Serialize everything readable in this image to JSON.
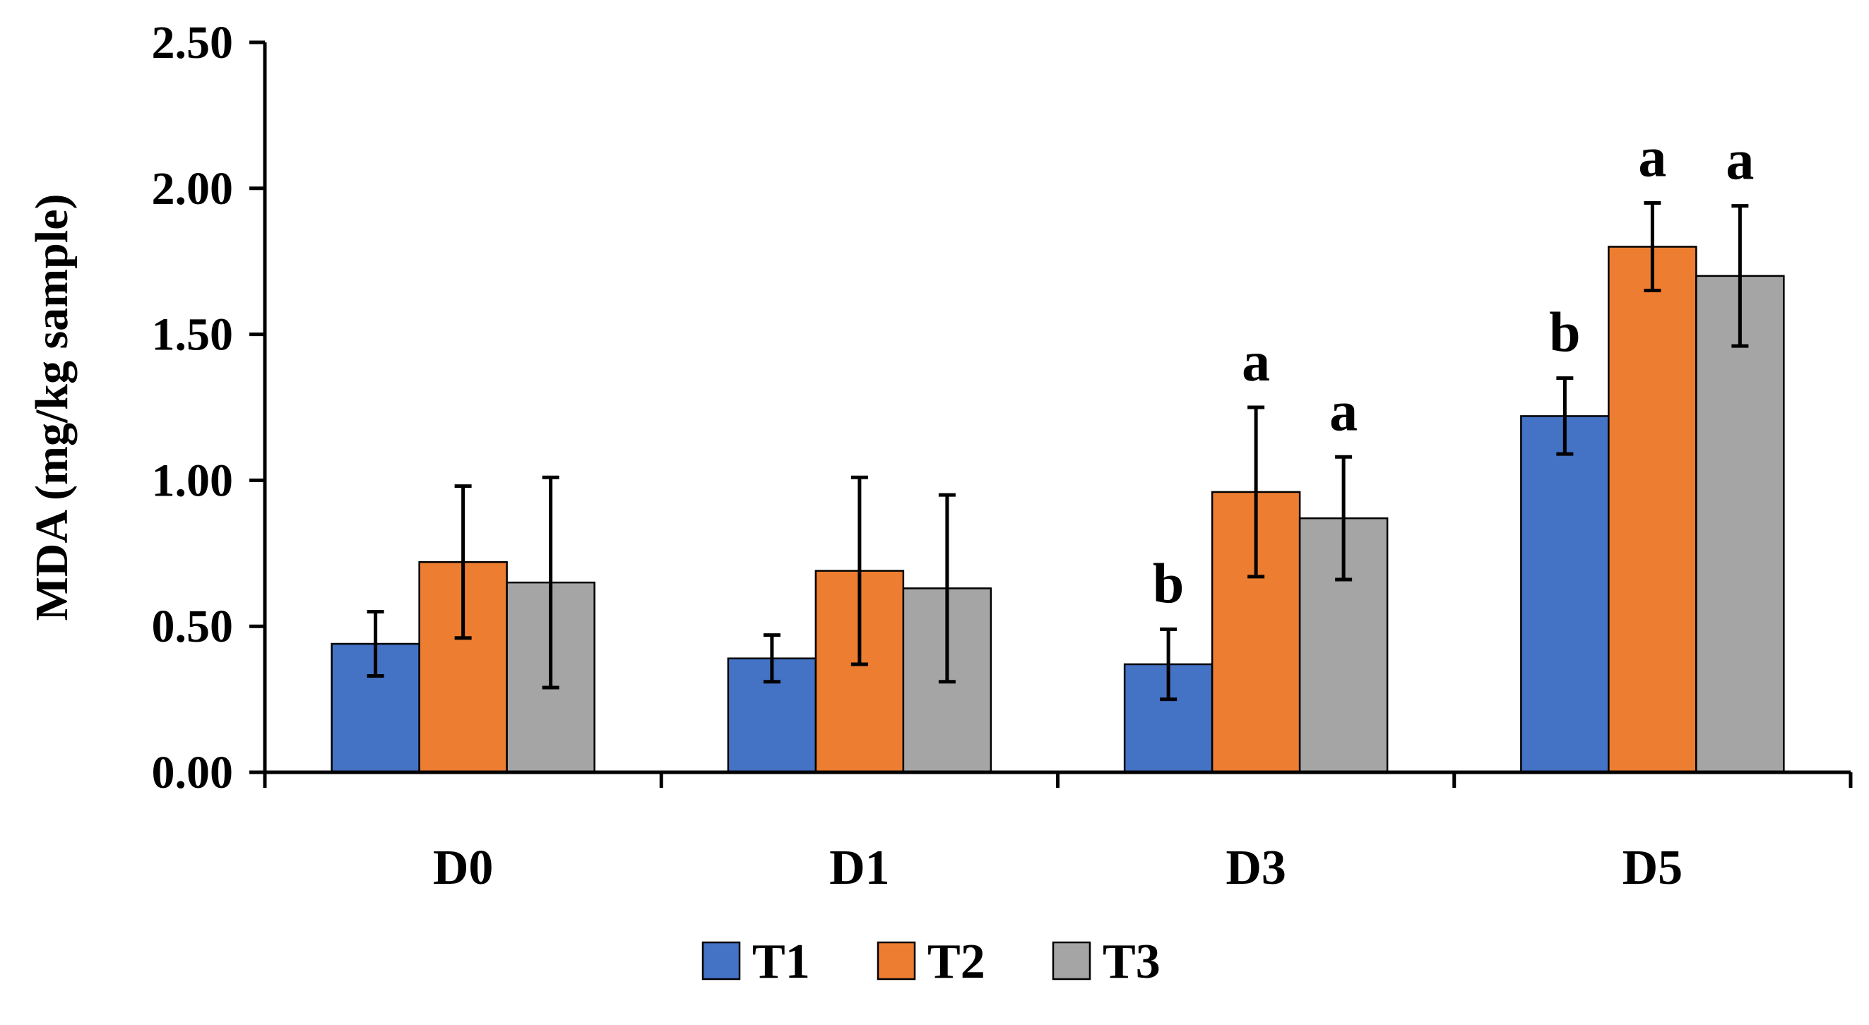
{
  "chart_data": {
    "type": "bar",
    "title": "",
    "xlabel": "",
    "ylabel": "MDA (mg/kg sample)",
    "categories": [
      "D0",
      "D1",
      "D3",
      "D5"
    ],
    "ylim": [
      0,
      2.5
    ],
    "yticks": [
      0,
      0.5,
      1.0,
      1.5,
      2.0,
      2.5
    ],
    "ytick_labels": [
      "0.00",
      "0.50",
      "1.00",
      "1.50",
      "2.00",
      "2.50"
    ],
    "grid": false,
    "legend_position": "bottom",
    "series": [
      {
        "name": "T1",
        "color": "#4472C4",
        "values": [
          0.44,
          0.39,
          0.37,
          1.22
        ],
        "errors": [
          0.11,
          0.08,
          0.12,
          0.13
        ],
        "labels": [
          "",
          "",
          "b",
          "b"
        ]
      },
      {
        "name": "T2",
        "color": "#ED7D31",
        "values": [
          0.72,
          0.69,
          0.96,
          1.8
        ],
        "errors": [
          0.26,
          0.32,
          0.29,
          0.15
        ],
        "labels": [
          "",
          "",
          "a",
          "a"
        ]
      },
      {
        "name": "T3",
        "color": "#A5A5A5",
        "values": [
          0.65,
          0.63,
          0.87,
          1.7
        ],
        "errors": [
          0.36,
          0.32,
          0.21,
          0.24
        ],
        "labels": [
          "",
          "",
          "a",
          "a"
        ]
      }
    ]
  }
}
